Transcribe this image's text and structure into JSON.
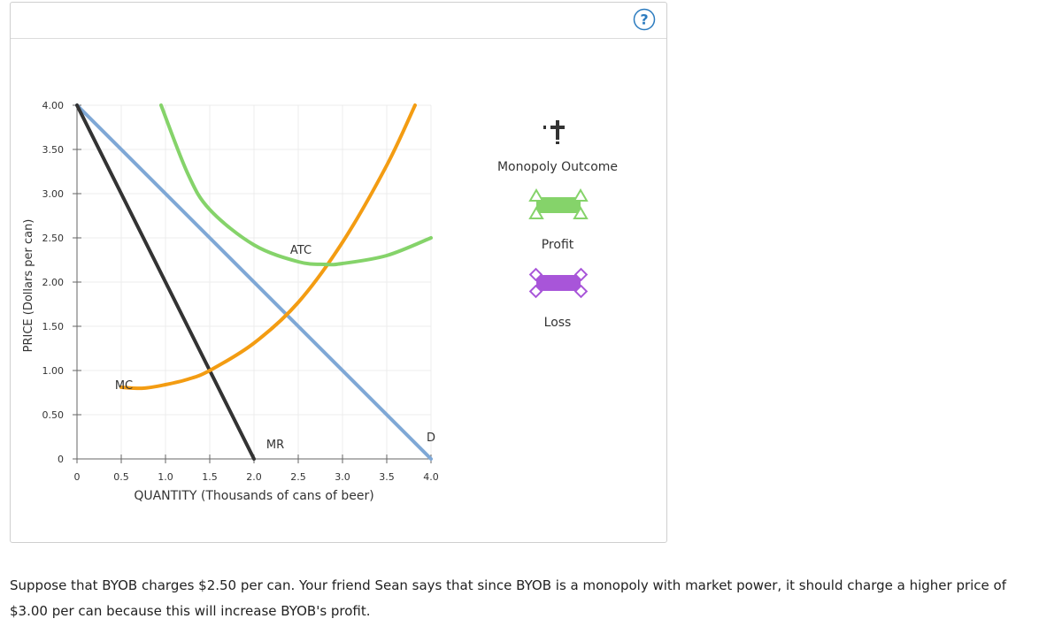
{
  "help_icon": "question-circle-icon",
  "chart_data": {
    "type": "line",
    "xlabel": "QUANTITY (Thousands of cans of beer)",
    "ylabel": "PRICE (Dollars per can)",
    "xlim": [
      0,
      4.0
    ],
    "ylim": [
      0,
      4.0
    ],
    "x_ticks": [
      "0",
      "0.5",
      "1.0",
      "1.5",
      "2.0",
      "2.5",
      "3.0",
      "3.5",
      "4.0"
    ],
    "y_ticks": [
      "0",
      "0.50",
      "1.00",
      "1.50",
      "2.00",
      "2.50",
      "3.00",
      "3.50",
      "4.00"
    ],
    "grid": true,
    "series": [
      {
        "name": "D",
        "color": "#7fa8d6",
        "points": [
          [
            0,
            4.0
          ],
          [
            4.0,
            0
          ]
        ]
      },
      {
        "name": "MR",
        "color": "#333333",
        "points": [
          [
            0,
            4.0
          ],
          [
            2.0,
            0
          ]
        ]
      },
      {
        "name": "MC",
        "color": "#f39c12",
        "points": [
          [
            0.5,
            0.81
          ],
          [
            0.75,
            0.8
          ],
          [
            1.0,
            0.84
          ],
          [
            1.25,
            0.9
          ],
          [
            1.5,
            1.0
          ],
          [
            2.0,
            1.31
          ],
          [
            2.5,
            1.77
          ],
          [
            3.0,
            2.45
          ],
          [
            3.5,
            3.32
          ],
          [
            3.82,
            4.0
          ]
        ]
      },
      {
        "name": "ATC",
        "color": "#85d36a",
        "points": [
          [
            0.95,
            4.0
          ],
          [
            1.25,
            3.23
          ],
          [
            1.5,
            2.82
          ],
          [
            2.0,
            2.42
          ],
          [
            2.5,
            2.23
          ],
          [
            2.8,
            2.2
          ],
          [
            3.0,
            2.21
          ],
          [
            3.5,
            2.3
          ],
          [
            4.0,
            2.5
          ]
        ]
      }
    ],
    "annotations": [
      {
        "text": "ATC",
        "x": 2.53,
        "y": 2.32
      },
      {
        "text": "MC",
        "x": 0.53,
        "y": 0.79
      },
      {
        "text": "MR",
        "x": 2.24,
        "y": 0.12
      },
      {
        "text": "D",
        "x": 4.0,
        "y": 0.2
      }
    ]
  },
  "legend": [
    {
      "label": "Monopoly Outcome",
      "icon": "cross-marker-icon",
      "color": "#333333"
    },
    {
      "label": "Profit",
      "icon": "profit-rectangle-icon",
      "color": "#85d36a"
    },
    {
      "label": "Loss",
      "icon": "loss-rectangle-icon",
      "color": "#a855d9"
    }
  ],
  "question": "Suppose that BYOB charges $2.50 per can. Your friend Sean says that since BYOB is a monopoly with market power, it should charge a higher price of $3.00 per can because this will increase BYOB's profit."
}
